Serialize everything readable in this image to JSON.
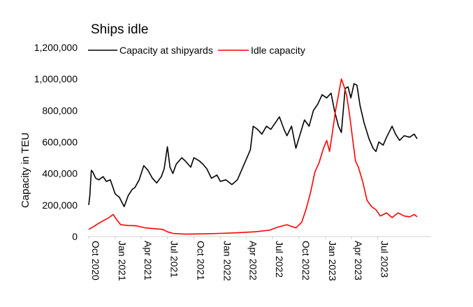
{
  "chart_data": {
    "type": "line",
    "title": "Ships idle",
    "ylabel": "Capacity in TEU",
    "xlabel": "",
    "ylim": [
      0,
      1200000
    ],
    "yticks": [
      0,
      200000,
      400000,
      600000,
      800000,
      1000000,
      1200000
    ],
    "ytick_labels": [
      "0",
      "200,000",
      "400,000",
      "600,000",
      "800,000",
      "1,000,000",
      "1,200,000"
    ],
    "xlim": [
      "2020-10-01",
      "2023-12-31"
    ],
    "xticks": [
      "2020-10-01",
      "2021-01-01",
      "2021-04-01",
      "2021-07-01",
      "2021-10-01",
      "2022-01-01",
      "2022-04-01",
      "2022-07-01",
      "2022-10-01",
      "2023-01-01",
      "2023-04-01",
      "2023-07-01"
    ],
    "xtick_labels": [
      "Oct 2020",
      "Jan 2021",
      "Apr 2021",
      "Jul 2021",
      "Oct 2021",
      "Jan 2022",
      "Apr 2022",
      "Jul 2022",
      "Oct 2022",
      "Jan 2023",
      "Apr 2023",
      "Jul 2023"
    ],
    "grid": false,
    "legend_position": "top",
    "series": [
      {
        "name": "Capacity at shipyards",
        "color": "#000000",
        "points": [
          [
            "2020-10-01",
            200000
          ],
          [
            "2020-10-05",
            260000
          ],
          [
            "2020-10-10",
            420000
          ],
          [
            "2020-10-15",
            410000
          ],
          [
            "2020-10-25",
            370000
          ],
          [
            "2020-11-05",
            360000
          ],
          [
            "2020-11-20",
            380000
          ],
          [
            "2020-12-01",
            350000
          ],
          [
            "2020-12-15",
            360000
          ],
          [
            "2021-01-01",
            270000
          ],
          [
            "2021-01-15",
            250000
          ],
          [
            "2021-02-01",
            190000
          ],
          [
            "2021-02-15",
            260000
          ],
          [
            "2021-03-01",
            300000
          ],
          [
            "2021-03-10",
            310000
          ],
          [
            "2021-03-25",
            360000
          ],
          [
            "2021-04-10",
            450000
          ],
          [
            "2021-04-25",
            420000
          ],
          [
            "2021-05-10",
            370000
          ],
          [
            "2021-05-25",
            340000
          ],
          [
            "2021-06-10",
            380000
          ],
          [
            "2021-06-20",
            430000
          ],
          [
            "2021-07-01",
            570000
          ],
          [
            "2021-07-10",
            440000
          ],
          [
            "2021-07-20",
            400000
          ],
          [
            "2021-08-01",
            460000
          ],
          [
            "2021-08-20",
            500000
          ],
          [
            "2021-09-01",
            480000
          ],
          [
            "2021-09-20",
            440000
          ],
          [
            "2021-10-01",
            500000
          ],
          [
            "2021-10-20",
            480000
          ],
          [
            "2021-11-01",
            460000
          ],
          [
            "2021-11-15",
            430000
          ],
          [
            "2021-12-01",
            370000
          ],
          [
            "2021-12-20",
            390000
          ],
          [
            "2022-01-01",
            350000
          ],
          [
            "2022-01-20",
            360000
          ],
          [
            "2022-02-10",
            330000
          ],
          [
            "2022-03-01",
            360000
          ],
          [
            "2022-03-20",
            440000
          ],
          [
            "2022-04-01",
            490000
          ],
          [
            "2022-04-15",
            550000
          ],
          [
            "2022-04-25",
            700000
          ],
          [
            "2022-05-10",
            680000
          ],
          [
            "2022-05-25",
            650000
          ],
          [
            "2022-06-10",
            700000
          ],
          [
            "2022-06-25",
            680000
          ],
          [
            "2022-07-10",
            720000
          ],
          [
            "2022-07-25",
            760000
          ],
          [
            "2022-08-10",
            680000
          ],
          [
            "2022-08-20",
            640000
          ],
          [
            "2022-09-05",
            700000
          ],
          [
            "2022-09-20",
            560000
          ],
          [
            "2022-10-05",
            650000
          ],
          [
            "2022-10-20",
            740000
          ],
          [
            "2022-11-05",
            700000
          ],
          [
            "2022-11-20",
            800000
          ],
          [
            "2022-12-05",
            840000
          ],
          [
            "2022-12-20",
            900000
          ],
          [
            "2023-01-05",
            880000
          ],
          [
            "2023-01-20",
            910000
          ],
          [
            "2023-02-01",
            800000
          ],
          [
            "2023-02-15",
            700000
          ],
          [
            "2023-02-25",
            660000
          ],
          [
            "2023-03-10",
            940000
          ],
          [
            "2023-03-20",
            950000
          ],
          [
            "2023-03-30",
            880000
          ],
          [
            "2023-04-10",
            970000
          ],
          [
            "2023-04-20",
            960000
          ],
          [
            "2023-05-01",
            830000
          ],
          [
            "2023-05-15",
            720000
          ],
          [
            "2023-06-01",
            620000
          ],
          [
            "2023-06-15",
            560000
          ],
          [
            "2023-06-25",
            540000
          ],
          [
            "2023-07-05",
            600000
          ],
          [
            "2023-07-20",
            580000
          ],
          [
            "2023-08-01",
            630000
          ],
          [
            "2023-08-20",
            700000
          ],
          [
            "2023-09-01",
            650000
          ],
          [
            "2023-09-15",
            610000
          ],
          [
            "2023-10-01",
            640000
          ],
          [
            "2023-10-20",
            630000
          ],
          [
            "2023-11-05",
            650000
          ],
          [
            "2023-11-15",
            620000
          ]
        ]
      },
      {
        "name": "Idle capacity",
        "color": "#ff0000",
        "points": [
          [
            "2020-10-01",
            45000
          ],
          [
            "2020-10-15",
            60000
          ],
          [
            "2020-11-01",
            80000
          ],
          [
            "2020-11-20",
            100000
          ],
          [
            "2020-12-10",
            120000
          ],
          [
            "2020-12-25",
            140000
          ],
          [
            "2021-01-05",
            110000
          ],
          [
            "2021-01-20",
            75000
          ],
          [
            "2021-02-15",
            70000
          ],
          [
            "2021-03-15",
            68000
          ],
          [
            "2021-04-15",
            55000
          ],
          [
            "2021-05-15",
            50000
          ],
          [
            "2021-06-15",
            45000
          ],
          [
            "2021-07-01",
            30000
          ],
          [
            "2021-07-20",
            20000
          ],
          [
            "2021-09-01",
            15000
          ],
          [
            "2021-11-01",
            17000
          ],
          [
            "2022-01-01",
            20000
          ],
          [
            "2022-03-01",
            24000
          ],
          [
            "2022-05-01",
            30000
          ],
          [
            "2022-06-20",
            40000
          ],
          [
            "2022-07-20",
            60000
          ],
          [
            "2022-08-20",
            75000
          ],
          [
            "2022-09-20",
            55000
          ],
          [
            "2022-10-10",
            90000
          ],
          [
            "2022-10-25",
            170000
          ],
          [
            "2022-11-10",
            280000
          ],
          [
            "2022-11-25",
            410000
          ],
          [
            "2022-12-10",
            470000
          ],
          [
            "2022-12-25",
            560000
          ],
          [
            "2023-01-05",
            610000
          ],
          [
            "2023-01-15",
            540000
          ],
          [
            "2023-01-25",
            660000
          ],
          [
            "2023-02-05",
            800000
          ],
          [
            "2023-02-15",
            900000
          ],
          [
            "2023-02-25",
            1000000
          ],
          [
            "2023-03-05",
            960000
          ],
          [
            "2023-03-15",
            900000
          ],
          [
            "2023-03-25",
            780000
          ],
          [
            "2023-04-05",
            620000
          ],
          [
            "2023-04-15",
            480000
          ],
          [
            "2023-04-25",
            440000
          ],
          [
            "2023-05-10",
            350000
          ],
          [
            "2023-05-25",
            230000
          ],
          [
            "2023-06-10",
            190000
          ],
          [
            "2023-06-25",
            170000
          ],
          [
            "2023-07-10",
            130000
          ],
          [
            "2023-08-01",
            150000
          ],
          [
            "2023-08-20",
            120000
          ],
          [
            "2023-09-10",
            150000
          ],
          [
            "2023-10-01",
            130000
          ],
          [
            "2023-10-20",
            125000
          ],
          [
            "2023-11-05",
            140000
          ],
          [
            "2023-11-15",
            125000
          ]
        ]
      }
    ]
  }
}
